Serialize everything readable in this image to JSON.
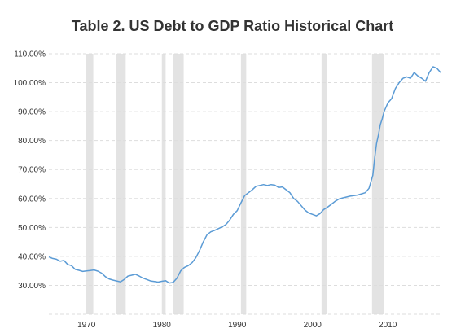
{
  "chart_data": {
    "type": "line",
    "title": "Table 2. US Debt to GDP Ratio Historical Chart",
    "xlabel": "",
    "ylabel": "",
    "xlim": [
      1965,
      2017
    ],
    "ylim": [
      20,
      110
    ],
    "y_ticks": [
      {
        "value": 30,
        "label": "30.00%"
      },
      {
        "value": 40,
        "label": "40.00%"
      },
      {
        "value": 50,
        "label": "50.00%"
      },
      {
        "value": 60,
        "label": "60.00%"
      },
      {
        "value": 70,
        "label": "70.00%"
      },
      {
        "value": 80,
        "label": "80.00%"
      },
      {
        "value": 90,
        "label": "90.00%"
      },
      {
        "value": 100,
        "label": "100.00%"
      },
      {
        "value": 110,
        "label": "110.00%"
      }
    ],
    "x_ticks": [
      {
        "value": 1970,
        "label": "1970"
      },
      {
        "value": 1980,
        "label": "1980"
      },
      {
        "value": 1990,
        "label": "1990"
      },
      {
        "value": 2000,
        "label": "2000"
      },
      {
        "value": 2010,
        "label": "2010"
      }
    ],
    "grid": "horizontal dashed",
    "line_color": "#5b9bd5",
    "recession_color": "#e3e3e3",
    "recessions": [
      [
        1969.9,
        1970.9
      ],
      [
        1973.9,
        1975.2
      ],
      [
        1980.0,
        1980.5
      ],
      [
        1981.5,
        1982.9
      ],
      [
        1990.5,
        1991.2
      ],
      [
        2001.2,
        2001.9
      ],
      [
        2007.9,
        2009.5
      ]
    ],
    "series": [
      {
        "x": [
          1965.0,
          1965.5,
          1966.0,
          1966.5,
          1967.0,
          1967.5,
          1968.0,
          1968.5,
          1969.0,
          1969.5,
          1970.0,
          1970.5,
          1971.0,
          1971.5,
          1972.0,
          1972.5,
          1973.0,
          1973.5,
          1974.0,
          1974.5,
          1975.0,
          1975.5,
          1976.0,
          1976.5,
          1977.0,
          1977.5,
          1978.0,
          1978.5,
          1979.0,
          1979.5,
          1980.0,
          1980.5,
          1981.0,
          1981.5,
          1982.0,
          1982.5,
          1983.0,
          1983.5,
          1984.0,
          1984.5,
          1985.0,
          1985.5,
          1986.0,
          1986.5,
          1987.0,
          1987.5,
          1988.0,
          1988.5,
          1989.0,
          1989.5,
          1990.0,
          1990.5,
          1991.0,
          1991.5,
          1992.0,
          1992.5,
          1993.0,
          1993.5,
          1994.0,
          1994.5,
          1995.0,
          1995.5,
          1996.0,
          1996.5,
          1997.0,
          1997.5,
          1998.0,
          1998.5,
          1999.0,
          1999.5,
          2000.0,
          2000.5,
          2001.0,
          2001.5,
          2002.0,
          2002.5,
          2003.0,
          2003.5,
          2004.0,
          2004.5,
          2005.0,
          2005.5,
          2006.0,
          2006.5,
          2007.0,
          2007.5,
          2008.0,
          2008.25,
          2008.5,
          2008.75,
          2009.0,
          2009.25,
          2009.5,
          2010.0,
          2010.5,
          2011.0,
          2011.5,
          2012.0,
          2012.5,
          2013.0,
          2013.5,
          2014.0,
          2014.5,
          2015.0,
          2015.5,
          2016.0,
          2016.5,
          2017.0
        ],
        "values": [
          39.8,
          39.3,
          39.0,
          38.3,
          38.6,
          37.2,
          36.8,
          35.5,
          35.2,
          34.8,
          35.0,
          35.1,
          35.3,
          34.9,
          34.2,
          33.0,
          32.2,
          31.8,
          31.5,
          31.2,
          32.0,
          33.2,
          33.5,
          33.8,
          33.2,
          32.5,
          32.0,
          31.5,
          31.3,
          31.1,
          31.4,
          31.6,
          30.8,
          31.0,
          32.5,
          35.0,
          36.2,
          36.8,
          37.8,
          39.5,
          42.0,
          45.0,
          47.5,
          48.5,
          49.0,
          49.6,
          50.2,
          51.0,
          52.5,
          54.5,
          55.8,
          58.5,
          61.0,
          62.0,
          63.0,
          64.2,
          64.5,
          64.8,
          64.5,
          64.8,
          64.6,
          63.8,
          64.0,
          63.0,
          62.0,
          60.0,
          59.0,
          57.5,
          56.0,
          55.0,
          54.5,
          54.0,
          54.8,
          56.2,
          57.0,
          58.0,
          59.0,
          59.8,
          60.2,
          60.5,
          60.8,
          61.0,
          61.2,
          61.6,
          62.0,
          63.5,
          68.0,
          74.0,
          79.0,
          82.0,
          85.5,
          87.5,
          90.0,
          93.0,
          94.5,
          98.0,
          100.0,
          101.5,
          102.0,
          101.5,
          103.5,
          102.3,
          101.5,
          100.5,
          103.5,
          105.5,
          105.0,
          103.5
        ]
      }
    ]
  }
}
